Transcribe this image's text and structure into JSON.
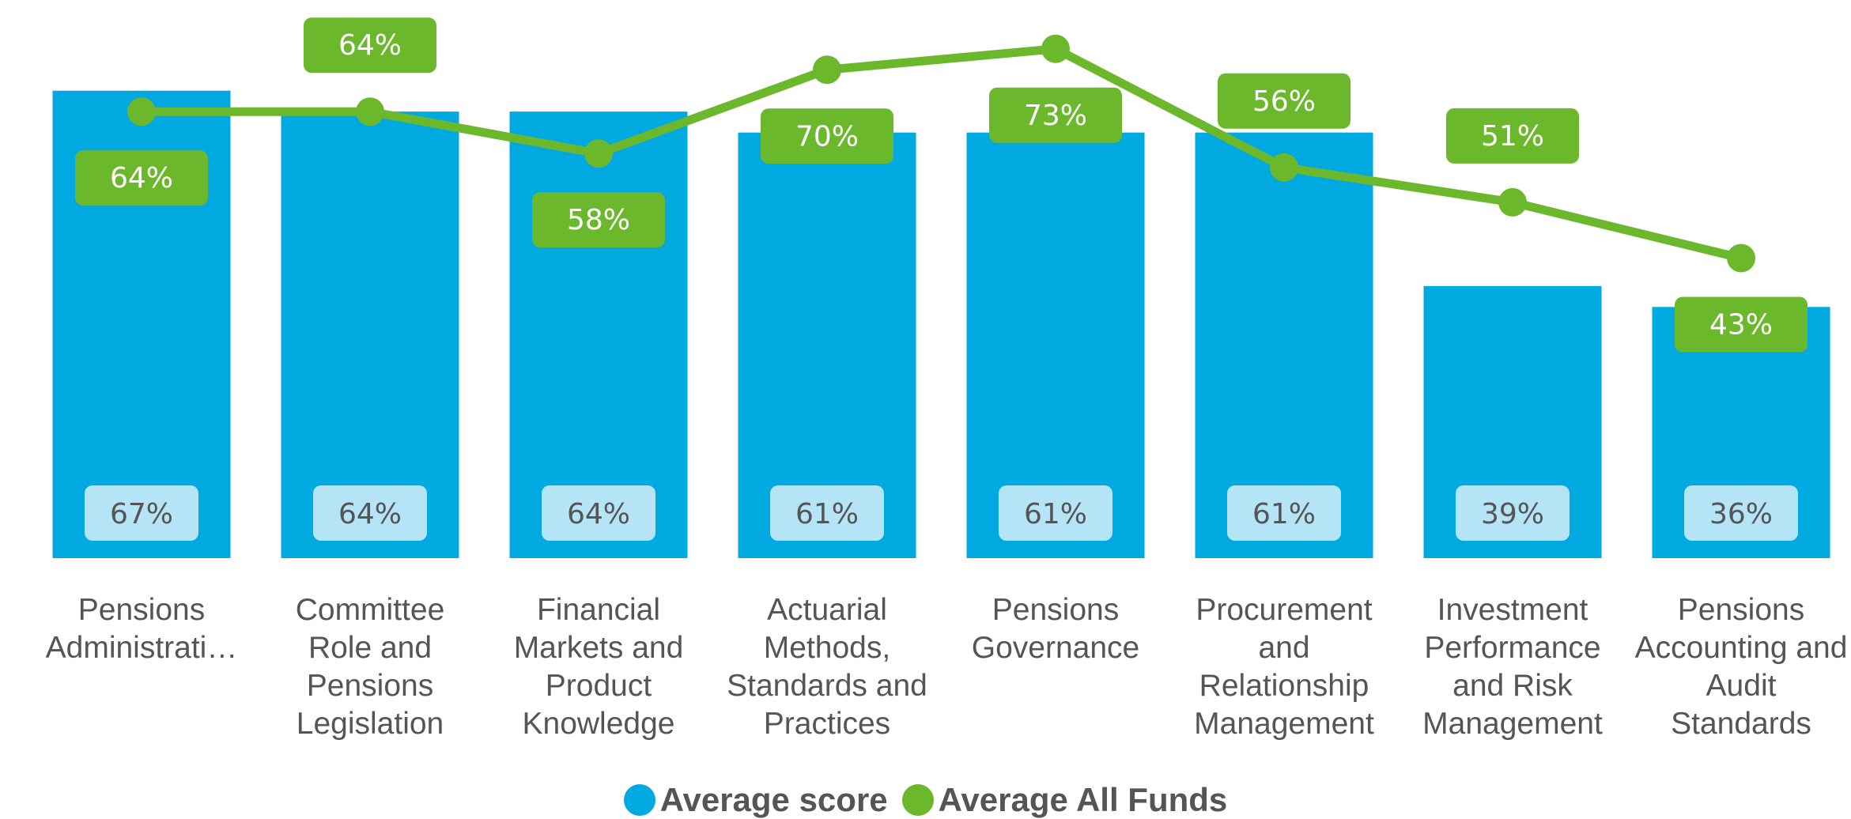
{
  "chart_data": {
    "type": "bar-line",
    "categories": [
      "Pensions Administrati…",
      "Committee Role and Pensions Legislation",
      "Financial Markets and Product Knowledge",
      "Actuarial Methods, Standards and Practices",
      "Pensions Governance",
      "Procurement and Relationship Management",
      "Investment Performance and Risk Management",
      "Pensions Accounting and Audit Standards"
    ],
    "series": [
      {
        "name": "Average score",
        "color": "#00a9e0",
        "type": "bar",
        "values": [
          67,
          64,
          64,
          61,
          61,
          61,
          39,
          36
        ],
        "value_labels": [
          "67%",
          "64%",
          "64%",
          "61%",
          "61%",
          "61%",
          "39%",
          "36%"
        ]
      },
      {
        "name": "Average All Funds",
        "color": "#6cb82c",
        "type": "line",
        "values": [
          64,
          64,
          58,
          70,
          73,
          56,
          51,
          43
        ],
        "value_labels": [
          "64%",
          "64%",
          "58%",
          "70%",
          "73%",
          "56%",
          "51%",
          "43%"
        ]
      }
    ],
    "ylim": [
      0,
      80
    ],
    "legend": "bottom"
  }
}
